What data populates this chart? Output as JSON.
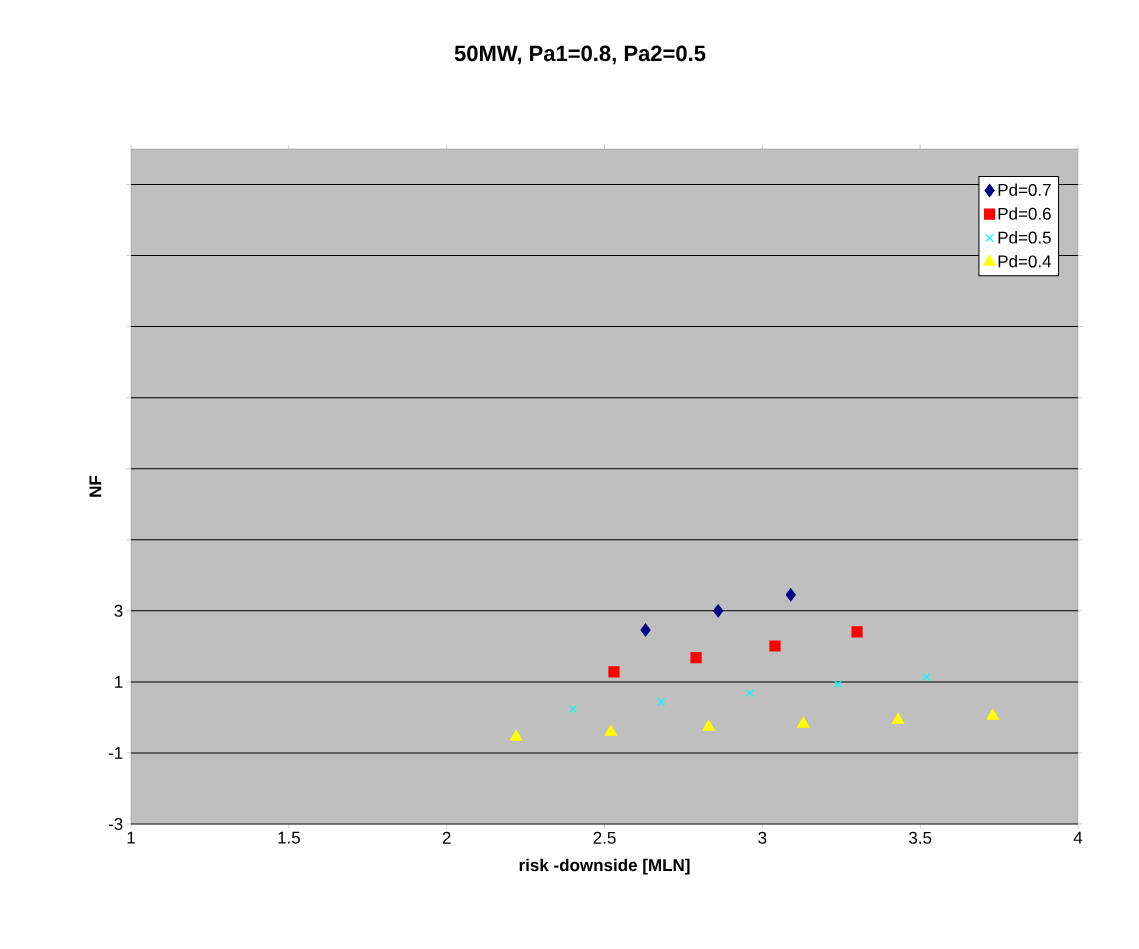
{
  "chart_data": {
    "type": "scatter",
    "title": "50MW, Pa1=0.8, Pa2=0.5",
    "xlabel": "risk -downside [MLN]",
    "ylabel": "NF",
    "series": [
      {
        "name": "Pd=0.7",
        "color": "#000080",
        "marker": "diamond",
        "x": [
          2.63,
          2.86,
          3.09
        ],
        "values": [
          2.46,
          3.0,
          3.45
        ]
      },
      {
        "name": "Pd=0.6",
        "color": "#ff0000",
        "marker": "square",
        "x": [
          2.53,
          2.79,
          3.04,
          3.3
        ],
        "values": [
          1.28,
          1.68,
          2.01,
          2.41
        ]
      },
      {
        "name": "Pd=0.5",
        "color": "#00ffff",
        "marker": "cross",
        "x": [
          2.4,
          2.68,
          2.96,
          3.24,
          3.52
        ],
        "values": [
          0.24,
          0.44,
          0.69,
          0.94,
          1.14
        ]
      },
      {
        "name": "Pd=0.4",
        "color": "#ffff00",
        "marker": "triangle",
        "x": [
          2.22,
          2.52,
          2.83,
          3.13,
          3.43,
          3.73
        ],
        "values": [
          -0.55,
          -0.41,
          -0.27,
          -0.18,
          -0.07,
          0.04
        ]
      }
    ],
    "xlim": [
      1,
      4
    ],
    "xticks": [
      1,
      1.5,
      2,
      2.5,
      3,
      3.5,
      4
    ],
    "ylim": [
      -3,
      16
    ],
    "yticks": [
      -3,
      -1,
      1,
      3,
      {
        "value": 5,
        "label": null
      },
      {
        "value": 7,
        "label": null
      },
      {
        "value": 9,
        "label": null
      },
      {
        "value": 11,
        "label": null
      },
      {
        "value": 13,
        "label": null
      },
      {
        "value": 15,
        "label": null
      }
    ],
    "grid": "y",
    "legend": "top right"
  }
}
